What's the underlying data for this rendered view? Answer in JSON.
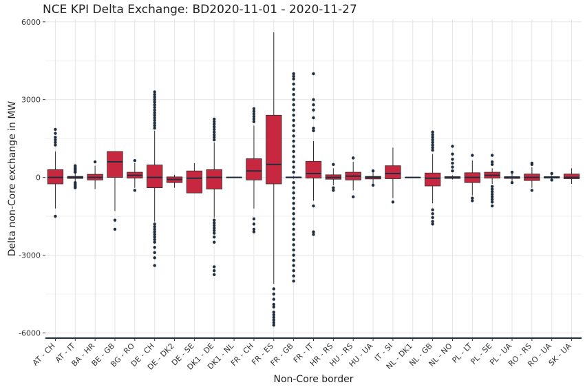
{
  "chart_data": {
    "type": "box",
    "title": "NCE KPI Delta Exchange: BD2020-11-01 - 2020-11-27",
    "xlabel": "Non-Core border",
    "ylabel": "Delta non-Core exchange in MW",
    "ylim": [
      -6200,
      6100
    ],
    "yticks": [
      6000,
      3000,
      0,
      -3000,
      -6000
    ],
    "ytick_labels": [
      "6000",
      "3000",
      "0",
      "-3000",
      "-6000"
    ],
    "grid": true,
    "colors": {
      "box_fill": "#C8283F",
      "box_stroke": "#2B2B2B",
      "median": "#1F2D3D",
      "grid": "#E5E5E5",
      "axis": "#1F2D3D"
    },
    "categories": [
      "AT - CH",
      "AT - IT",
      "BA - HR",
      "BE - GB",
      "BG - RO",
      "DE - CH",
      "DE - DK2",
      "DE - SE",
      "DK1 - DE",
      "DK1 - NL",
      "FR - CH",
      "FR - ES",
      "FR - GB",
      "FR - IT",
      "HR - RS",
      "HU - RS",
      "HU - UA",
      "IT - SI",
      "NL - DK1",
      "NL - GB",
      "NL - NO",
      "PL - LT",
      "PL - SE",
      "PL - UA",
      "RO - RS",
      "RO - UA",
      "SK - UA"
    ],
    "boxes": [
      {
        "q1": -250,
        "median": 0,
        "q3": 300,
        "wmin": -1200,
        "wmax": 1000,
        "outliers": [
          1250,
          1350,
          1450,
          1550,
          1700,
          1850,
          -1500
        ]
      },
      {
        "q1": -40,
        "median": 0,
        "q3": 40,
        "wmin": -150,
        "wmax": 150,
        "outliers": [
          200,
          250,
          300,
          350,
          400,
          450,
          -200,
          -250,
          -300,
          -350,
          -400
        ]
      },
      {
        "q1": -100,
        "median": 0,
        "q3": 120,
        "wmin": -450,
        "wmax": 450,
        "outliers": [
          600
        ]
      },
      {
        "q1": 0,
        "median": 600,
        "q3": 1000,
        "wmin": -1300,
        "wmax": 1000,
        "outliers": [
          -1650,
          -2000
        ]
      },
      {
        "q1": -30,
        "median": 80,
        "q3": 200,
        "wmin": -400,
        "wmax": 550,
        "outliers": [
          650,
          -500
        ]
      },
      {
        "q1": -400,
        "median": 0,
        "q3": 480,
        "wmin": -1700,
        "wmax": 1800,
        "outliers": [
          1900,
          2000,
          2100,
          2200,
          2300,
          2400,
          2500,
          2600,
          2700,
          2800,
          2900,
          3000,
          3100,
          3200,
          3300,
          -1800,
          -1900,
          -2000,
          -2100,
          -2200,
          -2300,
          -2400,
          -2500,
          -2700,
          -2900,
          -3100,
          -3400
        ]
      },
      {
        "q1": -200,
        "median": -80,
        "q3": 20,
        "wmin": -400,
        "wmax": 100,
        "outliers": []
      },
      {
        "q1": -600,
        "median": -30,
        "q3": 250,
        "wmin": -600,
        "wmax": 550,
        "outliers": []
      },
      {
        "q1": -450,
        "median": 0,
        "q3": 300,
        "wmin": -1550,
        "wmax": 1350,
        "outliers": [
          1450,
          1550,
          1650,
          1750,
          1850,
          1950,
          2050,
          2150,
          2250,
          -1650,
          -1750,
          -1850,
          -1950,
          -2050,
          -2150,
          -2300,
          -2500,
          -3450,
          -3600,
          -3750
        ]
      },
      {
        "q1": -10,
        "median": 0,
        "q3": 10,
        "wmin": -20,
        "wmax": 20,
        "outliers": []
      },
      {
        "q1": -100,
        "median": 250,
        "q3": 720,
        "wmin": -1200,
        "wmax": 2000,
        "outliers": [
          2150,
          2250,
          2350,
          2450,
          2550,
          2650,
          -1600,
          -1800,
          -2000,
          -2100
        ]
      },
      {
        "q1": -250,
        "median": 500,
        "q3": 2400,
        "wmin": -4100,
        "wmax": 5600,
        "outliers": [
          -4300,
          -4500,
          -4700,
          -4900,
          -5000,
          -5200,
          -5300,
          -5400,
          -5500,
          -5600,
          -5700
        ]
      },
      {
        "q1": -20,
        "median": 0,
        "q3": 20,
        "wmin": -50,
        "wmax": 50,
        "outliers": [
          4000,
          3900,
          3800,
          3600,
          3400,
          3200,
          3000,
          2800,
          2600,
          2400,
          2200,
          2000,
          1800,
          1600,
          1400,
          1200,
          1000,
          800,
          600,
          400,
          200,
          -200,
          -400,
          -600,
          -800,
          -1000,
          -1200,
          -1400,
          -1600,
          -1800,
          -2000,
          -2200,
          -2400,
          -2600,
          -2800,
          -3000,
          -3200,
          -3400,
          -3600,
          -3800,
          -4000
        ]
      },
      {
        "q1": -30,
        "median": 150,
        "q3": 620,
        "wmin": -900,
        "wmax": 1400,
        "outliers": [
          1800,
          1900,
          2300,
          2600,
          2800,
          3000,
          4000,
          -1100,
          -2100,
          -2200
        ]
      },
      {
        "q1": -70,
        "median": 0,
        "q3": 100,
        "wmin": -300,
        "wmax": 350,
        "outliers": [
          500,
          -400,
          -500
        ]
      },
      {
        "q1": -100,
        "median": 50,
        "q3": 200,
        "wmin": -500,
        "wmax": 600,
        "outliers": [
          750,
          -750
        ]
      },
      {
        "q1": -60,
        "median": 0,
        "q3": 40,
        "wmin": -250,
        "wmax": 200,
        "outliers": [
          250,
          -300
        ]
      },
      {
        "q1": -50,
        "median": 150,
        "q3": 450,
        "wmin": -800,
        "wmax": 1150,
        "outliers": [
          -950
        ]
      },
      {
        "q1": -5,
        "median": 0,
        "q3": 5,
        "wmin": -10,
        "wmax": 10,
        "outliers": []
      },
      {
        "q1": -330,
        "median": -30,
        "q3": 170,
        "wmin": -1000,
        "wmax": 900,
        "outliers": [
          1050,
          1150,
          1250,
          1350,
          1450,
          1550,
          1650,
          1750,
          -1250,
          -1400,
          -1550,
          -1700,
          -1800
        ]
      },
      {
        "q1": -40,
        "median": 0,
        "q3": 30,
        "wmin": -80,
        "wmax": 80,
        "outliers": [
          250,
          400,
          550,
          700,
          900,
          1200
        ]
      },
      {
        "q1": -200,
        "median": 0,
        "q3": 180,
        "wmin": -700,
        "wmax": 650,
        "outliers": [
          850,
          -800,
          -900
        ]
      },
      {
        "q1": -30,
        "median": 80,
        "q3": 200,
        "wmin": -250,
        "wmax": 350,
        "outliers": [
          500,
          600,
          850,
          -350,
          -450,
          -550,
          -650,
          -750,
          -850,
          -950,
          -1100
        ]
      },
      {
        "q1": -40,
        "median": 0,
        "q3": 30,
        "wmin": -150,
        "wmax": 150,
        "outliers": [
          200,
          -200
        ]
      },
      {
        "q1": -120,
        "median": 0,
        "q3": 130,
        "wmin": -400,
        "wmax": 400,
        "outliers": [
          500,
          550,
          -500
        ]
      },
      {
        "q1": -30,
        "median": 0,
        "q3": 30,
        "wmin": -80,
        "wmax": 80,
        "outliers": [
          150,
          -100
        ]
      },
      {
        "q1": -50,
        "median": 0,
        "q3": 130,
        "wmin": -250,
        "wmax": 350,
        "outliers": []
      }
    ]
  }
}
